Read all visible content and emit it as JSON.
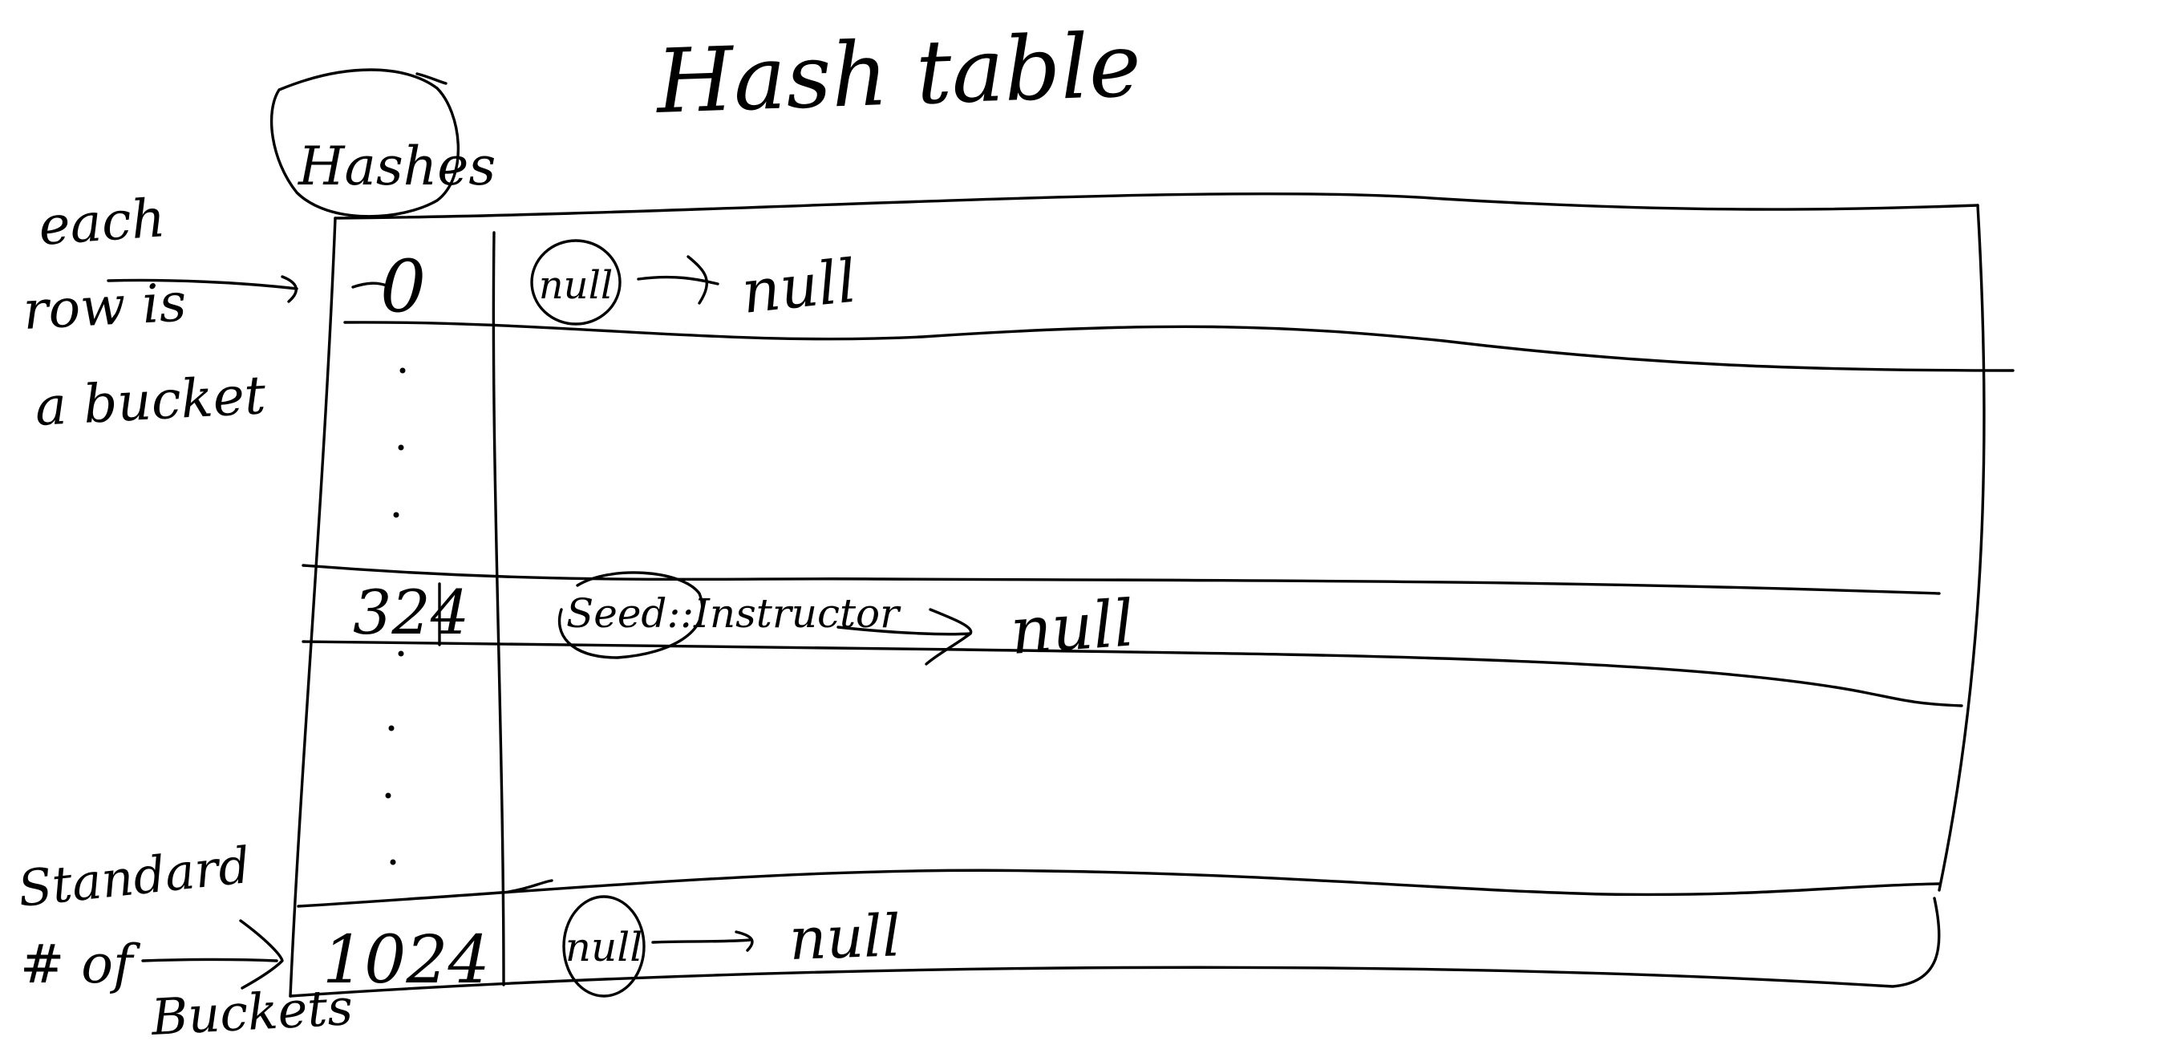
{
  "title": "Hash table",
  "column_header": "Hashes",
  "left_annotation": {
    "lines": [
      "each",
      "row is",
      "a bucket"
    ]
  },
  "bottom_left_annotation": {
    "lines": [
      "Standard",
      "# of",
      "Buckets"
    ]
  },
  "rows": [
    {
      "hash": "0",
      "entry": "null",
      "next": "null"
    },
    {
      "hash": "324",
      "entry": "Seed::Instructor",
      "next": "null"
    },
    {
      "hash": "1024",
      "entry": "null",
      "next": "null"
    }
  ],
  "colors": {
    "ink": "#000000",
    "paper": "#ffffff"
  }
}
